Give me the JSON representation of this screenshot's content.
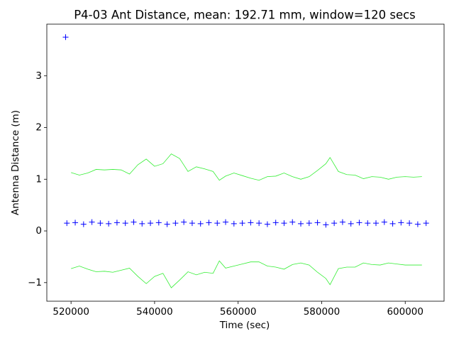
{
  "chart_data": {
    "type": "scatter",
    "title": "P4-03 Ant Distance, mean: 192.71 mm, window=120 secs",
    "x_label": "Time (sec)",
    "y_label": "Antenna Distance (m)",
    "xlim": [
      514200,
      609300
    ],
    "ylim": [
      -1.36,
      4.0
    ],
    "xticks": [
      520000,
      540000,
      560000,
      580000,
      600000
    ],
    "yticks": [
      {
        "value": -1,
        "label": "−1"
      },
      0,
      1,
      2,
      3
    ],
    "series": [
      {
        "style": "marker",
        "color": "#0000ff",
        "x": [
          518700,
          519000,
          521000,
          523000,
          525000,
          527000,
          529000,
          531000,
          533000,
          535000,
          537000,
          539000,
          541000,
          543000,
          545000,
          547000,
          549000,
          551000,
          553000,
          555000,
          557000,
          559000,
          561000,
          563000,
          565000,
          567000,
          569000,
          571000,
          573000,
          575000,
          577000,
          579000,
          581000,
          583000,
          585000,
          587000,
          589000,
          591000,
          593000,
          595000,
          597000,
          599000,
          601000,
          603000,
          605000
        ],
        "values": [
          3.75,
          0.15,
          0.16,
          0.13,
          0.17,
          0.15,
          0.14,
          0.16,
          0.15,
          0.17,
          0.14,
          0.15,
          0.16,
          0.13,
          0.15,
          0.17,
          0.15,
          0.14,
          0.16,
          0.15,
          0.17,
          0.14,
          0.15,
          0.16,
          0.15,
          0.13,
          0.16,
          0.15,
          0.17,
          0.14,
          0.15,
          0.16,
          0.12,
          0.15,
          0.17,
          0.14,
          0.16,
          0.15,
          0.15,
          0.17,
          0.14,
          0.16,
          0.15,
          0.13,
          0.15
        ]
      },
      {
        "style": "line",
        "color": "#33ee33",
        "x": [
          520000,
          522000,
          524000,
          526000,
          528000,
          530000,
          532000,
          534000,
          536000,
          538000,
          540000,
          542000,
          544000,
          546000,
          548000,
          550000,
          552000,
          554000,
          555500,
          557000,
          559000,
          561000,
          563000,
          565000,
          567000,
          569000,
          571000,
          573000,
          575000,
          577000,
          579000,
          581000,
          582000,
          584000,
          586000,
          588000,
          590000,
          592000,
          594000,
          596000,
          598000,
          600000,
          602000,
          604000
        ],
        "values": [
          1.13,
          1.08,
          1.12,
          1.19,
          1.18,
          1.19,
          1.18,
          1.1,
          1.28,
          1.39,
          1.25,
          1.3,
          1.49,
          1.4,
          1.15,
          1.24,
          1.2,
          1.15,
          0.98,
          1.06,
          1.12,
          1.07,
          1.02,
          0.98,
          1.05,
          1.06,
          1.12,
          1.05,
          1.0,
          1.05,
          1.17,
          1.3,
          1.42,
          1.15,
          1.09,
          1.08,
          1.01,
          1.05,
          1.04,
          1.0,
          1.04,
          1.05,
          1.04,
          1.05
        ]
      },
      {
        "style": "line",
        "color": "#33ee33",
        "x": [
          520000,
          522000,
          524000,
          526000,
          528000,
          530000,
          532000,
          534000,
          536000,
          538000,
          540000,
          542000,
          544000,
          546000,
          548000,
          550000,
          552000,
          554000,
          555500,
          557000,
          559000,
          561000,
          563000,
          565000,
          567000,
          569000,
          571000,
          573000,
          575000,
          577000,
          579000,
          581000,
          582000,
          584000,
          586000,
          588000,
          590000,
          592000,
          594000,
          596000,
          598000,
          600000,
          602000,
          604000
        ],
        "values": [
          -0.73,
          -0.68,
          -0.74,
          -0.79,
          -0.78,
          -0.8,
          -0.76,
          -0.72,
          -0.88,
          -1.02,
          -0.88,
          -0.82,
          -1.1,
          -0.95,
          -0.79,
          -0.85,
          -0.8,
          -0.82,
          -0.58,
          -0.72,
          -0.68,
          -0.64,
          -0.6,
          -0.6,
          -0.68,
          -0.7,
          -0.74,
          -0.65,
          -0.62,
          -0.66,
          -0.8,
          -0.92,
          -1.04,
          -0.73,
          -0.7,
          -0.7,
          -0.62,
          -0.65,
          -0.66,
          -0.62,
          -0.64,
          -0.66,
          -0.66,
          -0.66
        ]
      }
    ]
  }
}
